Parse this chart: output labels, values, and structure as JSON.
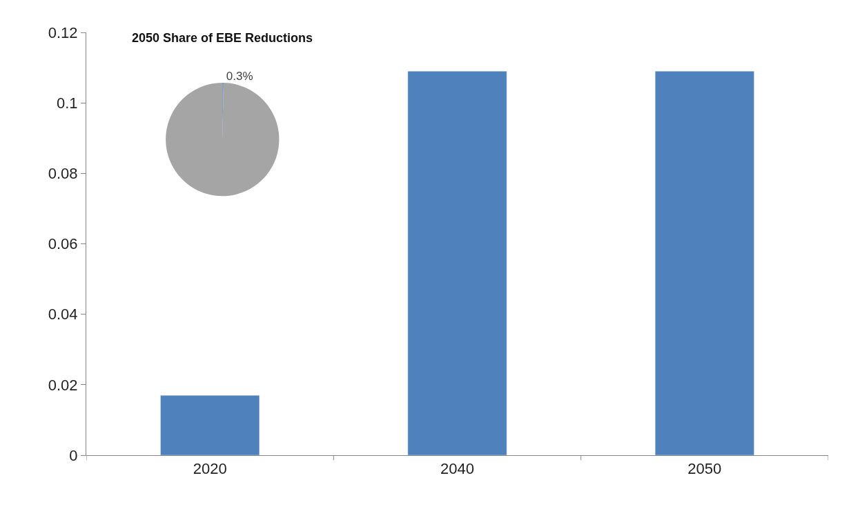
{
  "chart_data": [
    {
      "type": "bar",
      "categories": [
        "2020",
        "2040",
        "2050"
      ],
      "values": [
        0.017,
        0.109,
        0.109
      ],
      "color": "#4f81bd",
      "ylim": [
        0,
        0.12
      ],
      "yticks": [
        0,
        0.02,
        0.04,
        0.06,
        0.08,
        0.1,
        0.12
      ],
      "grid": false,
      "legend": false
    },
    {
      "type": "pie",
      "title": "2050 Share of EBE Reductions",
      "categories": [
        null,
        null
      ],
      "values": [
        0.3,
        99.7
      ],
      "colors": [
        "#4f81bd",
        "#a5a5a5"
      ],
      "value_labels": [
        "0.3%",
        null
      ],
      "legend": false
    }
  ]
}
